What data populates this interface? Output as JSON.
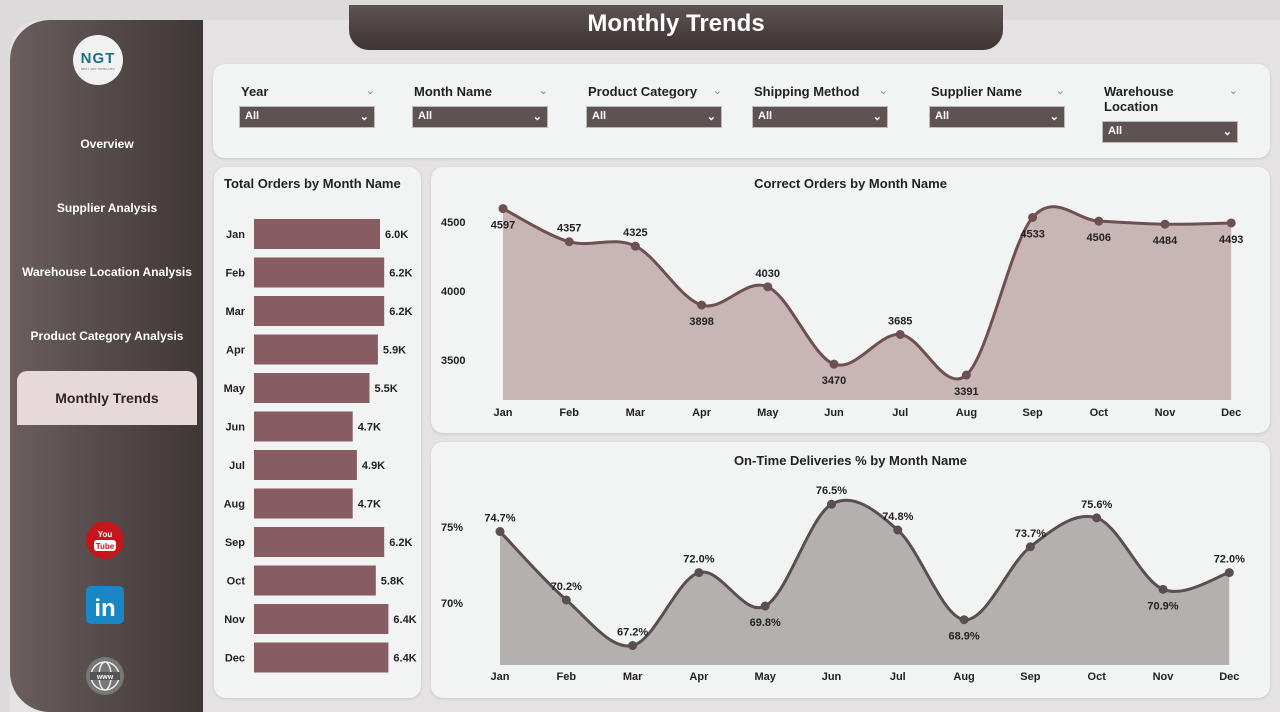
{
  "header": {
    "title": "Monthly Trends"
  },
  "logo": {
    "text": "NGT",
    "tagline": "NEXT GEN TEMPLATES"
  },
  "sidebar": {
    "items": [
      {
        "label": "Overview"
      },
      {
        "label": "Supplier Analysis"
      },
      {
        "label": "Warehouse Location Analysis"
      },
      {
        "label": "Product Category Analysis"
      },
      {
        "label": "Monthly Trends",
        "active": true
      }
    ],
    "social": [
      "youtube-icon",
      "linkedin-icon",
      "globe-icon"
    ]
  },
  "filters": [
    {
      "label": "Year",
      "value": "All"
    },
    {
      "label": "Month Name",
      "value": "All"
    },
    {
      "label": "Product Category",
      "value": "All"
    },
    {
      "label": "Shipping Method",
      "value": "All"
    },
    {
      "label": "Supplier Name",
      "value": "All"
    },
    {
      "label": "Warehouse Location",
      "value": "All"
    }
  ],
  "colors": {
    "sidebar": "#4f4444",
    "bar": "#875c62",
    "line": "#6e5050",
    "area1": "#c8b6b7",
    "line2": "#5a4e4e",
    "area2": "#b4b0b0",
    "active_nav": "#e7d9da"
  },
  "chart_data": [
    {
      "type": "bar",
      "orientation": "horizontal",
      "title": "Total Orders by Month Name",
      "categories": [
        "Jan",
        "Feb",
        "Mar",
        "Apr",
        "May",
        "Jun",
        "Jul",
        "Aug",
        "Sep",
        "Oct",
        "Nov",
        "Dec"
      ],
      "values": [
        6.0,
        6.2,
        6.2,
        5.9,
        5.5,
        4.7,
        4.9,
        4.7,
        6.2,
        5.8,
        6.4,
        6.4
      ],
      "labels": [
        "6.0K",
        "6.2K",
        "6.2K",
        "5.9K",
        "5.5K",
        "4.7K",
        "4.9K",
        "4.7K",
        "6.2K",
        "5.8K",
        "6.4K",
        "6.4K"
      ],
      "unit": "K"
    },
    {
      "type": "area",
      "title": "Correct Orders by Month Name",
      "categories": [
        "Jan",
        "Feb",
        "Mar",
        "Apr",
        "May",
        "Jun",
        "Jul",
        "Aug",
        "Sep",
        "Oct",
        "Nov",
        "Dec"
      ],
      "values": [
        4597,
        4357,
        4325,
        3898,
        4030,
        3470,
        3685,
        3391,
        4533,
        4506,
        4484,
        4493
      ],
      "yticks": [
        3500,
        4000,
        4500
      ]
    },
    {
      "type": "area",
      "title": "On-Time Deliveries % by Month Name",
      "categories": [
        "Jan",
        "Feb",
        "Mar",
        "Apr",
        "May",
        "Jun",
        "Jul",
        "Aug",
        "Sep",
        "Oct",
        "Nov",
        "Dec"
      ],
      "values": [
        74.7,
        70.2,
        67.2,
        72.0,
        69.8,
        76.5,
        74.8,
        68.9,
        73.7,
        75.6,
        70.9,
        72.0
      ],
      "yticks": [
        "70%",
        "75%"
      ]
    }
  ]
}
